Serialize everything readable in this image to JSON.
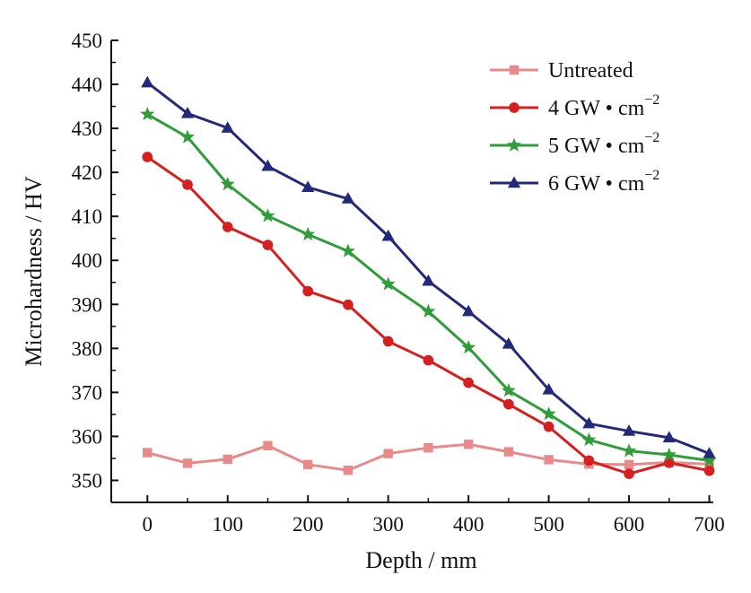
{
  "chart_data": {
    "type": "line",
    "title": "",
    "xlabel": "Depth / mm",
    "ylabel": "Microhardness / HV",
    "xlim": [
      -45,
      705
    ],
    "ylim": [
      345,
      450
    ],
    "x_ticks": [
      0,
      100,
      200,
      300,
      400,
      500,
      600,
      700
    ],
    "y_ticks": [
      350,
      360,
      370,
      380,
      390,
      400,
      410,
      420,
      430,
      440,
      450
    ],
    "x_tick_labels": [
      "0",
      "100",
      "200",
      "300",
      "400",
      "500",
      "600",
      "700"
    ],
    "y_tick_labels": [
      "350",
      "360",
      "370",
      "380",
      "390",
      "400",
      "410",
      "420",
      "430",
      "440",
      "450"
    ],
    "grid": false,
    "legend_position": "top-right",
    "x": [
      0,
      50,
      100,
      150,
      200,
      250,
      300,
      350,
      400,
      450,
      500,
      550,
      600,
      650,
      700
    ],
    "series": [
      {
        "name": "Untreated",
        "legend_main": "Untreated",
        "legend_sup": "",
        "color": "#e88a8a",
        "marker": "square",
        "values": [
          356.3,
          353.9,
          354.8,
          357.9,
          353.6,
          352.3,
          356.1,
          357.4,
          358.2,
          356.5,
          354.7,
          353.7,
          353.6,
          354.1,
          353.7
        ]
      },
      {
        "name": "4 GW·cm−2",
        "legend_main": "4 GW • cm",
        "legend_sup": "−2",
        "color": "#d62020",
        "marker": "circle",
        "values": [
          423.5,
          417.2,
          407.6,
          403.5,
          393.0,
          389.9,
          381.6,
          377.3,
          372.2,
          367.3,
          362.2,
          354.5,
          351.5,
          354.0,
          352.2
        ]
      },
      {
        "name": "5 GW·cm−2",
        "legend_main": "5 GW • cm",
        "legend_sup": "−2",
        "color": "#2f9e3a",
        "marker": "star",
        "values": [
          433.2,
          428.0,
          417.3,
          410.1,
          405.9,
          402.1,
          394.6,
          388.4,
          380.2,
          370.4,
          365.1,
          359.2,
          356.7,
          355.8,
          354.5
        ]
      },
      {
        "name": "6 GW·cm−2",
        "legend_main": "6 GW • cm",
        "legend_sup": "−2",
        "color": "#232a78",
        "marker": "triangle",
        "values": [
          440.4,
          433.4,
          430.1,
          421.4,
          416.6,
          414.0,
          405.5,
          395.3,
          388.4,
          381.0,
          370.6,
          362.9,
          361.2,
          359.7,
          356.1
        ]
      }
    ]
  }
}
